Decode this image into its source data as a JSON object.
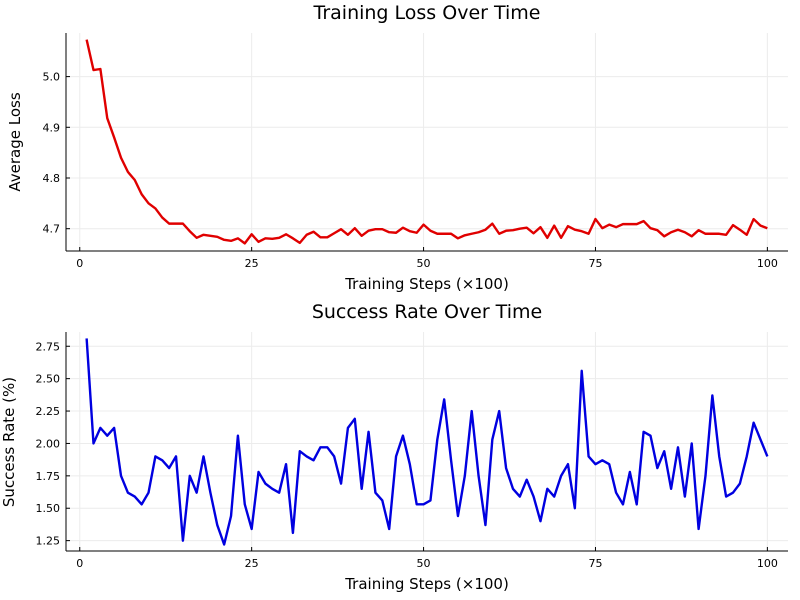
{
  "chart_data": [
    {
      "type": "line",
      "title": "Training Loss Over Time",
      "xlabel": "Training Steps (×100)",
      "ylabel": "Average Loss",
      "xlim": [
        -2,
        103
      ],
      "ylim": [
        4.656,
        5.086
      ],
      "x_ticks": [
        0,
        25,
        50,
        75,
        100
      ],
      "x_tick_labels": [
        "0",
        "25",
        "50",
        "75",
        "100"
      ],
      "y_ticks": [
        4.7,
        4.8,
        4.9,
        5.0
      ],
      "y_tick_labels": [
        "4.7",
        "4.8",
        "4.9",
        "5.0"
      ],
      "grid": true,
      "legend": "none",
      "color": "#e00000",
      "series": [
        {
          "x": [
            1,
            2,
            3,
            4,
            5,
            6,
            7,
            8,
            9,
            10,
            11,
            12,
            13,
            14,
            15,
            16,
            17,
            18,
            19,
            20,
            21,
            22,
            23,
            24,
            25,
            26,
            27,
            28,
            29,
            30,
            31,
            32,
            33,
            34,
            35,
            36,
            37,
            38,
            39,
            40,
            41,
            42,
            43,
            44,
            45,
            46,
            47,
            48,
            49,
            50,
            51,
            52,
            53,
            54,
            55,
            56,
            57,
            58,
            59,
            60,
            61,
            62,
            63,
            64,
            65,
            66,
            67,
            68,
            69,
            70,
            71,
            72,
            73,
            74,
            75,
            76,
            77,
            78,
            79,
            80,
            81,
            82,
            83,
            84,
            85,
            86,
            87,
            88,
            89,
            90,
            91,
            92,
            93,
            94,
            95,
            96,
            97,
            98,
            99,
            100
          ],
          "values": [
            5.073,
            5.013,
            5.015,
            4.918,
            4.88,
            4.84,
            4.812,
            4.796,
            4.768,
            4.75,
            4.74,
            4.722,
            4.71,
            4.71,
            4.71,
            4.695,
            4.682,
            4.688,
            4.686,
            4.684,
            4.678,
            4.676,
            4.681,
            4.671,
            4.689,
            4.674,
            4.681,
            4.68,
            4.682,
            4.689,
            4.681,
            4.672,
            4.688,
            4.694,
            4.683,
            4.683,
            4.691,
            4.699,
            4.688,
            4.701,
            4.686,
            4.696,
            4.699,
            4.699,
            4.693,
            4.692,
            4.702,
            4.695,
            4.692,
            4.708,
            4.696,
            4.69,
            4.69,
            4.69,
            4.681,
            4.687,
            4.69,
            4.693,
            4.698,
            4.71,
            4.69,
            4.696,
            4.697,
            4.7,
            4.702,
            4.691,
            4.703,
            4.682,
            4.706,
            4.682,
            4.705,
            4.698,
            4.695,
            4.69,
            4.719,
            4.701,
            4.708,
            4.703,
            4.709,
            4.709,
            4.709,
            4.715,
            4.701,
            4.697,
            4.685,
            4.693,
            4.698,
            4.693,
            4.685,
            4.697,
            4.69,
            4.69,
            4.69,
            4.688,
            4.707,
            4.698,
            4.688,
            4.719,
            4.706,
            4.701
          ]
        }
      ]
    },
    {
      "type": "line",
      "title": "Success Rate Over Time",
      "xlabel": "Training Steps (×100)",
      "ylabel": "Success Rate (%)",
      "xlim": [
        -2,
        103
      ],
      "ylim": [
        1.17,
        2.86
      ],
      "x_ticks": [
        0,
        25,
        50,
        75,
        100
      ],
      "x_tick_labels": [
        "0",
        "25",
        "50",
        "75",
        "100"
      ],
      "y_ticks": [
        1.25,
        1.5,
        1.75,
        2.0,
        2.25,
        2.5,
        2.75
      ],
      "y_tick_labels": [
        "1.25",
        "1.50",
        "1.75",
        "2.00",
        "2.25",
        "2.50",
        "2.75"
      ],
      "grid": true,
      "legend": "none",
      "color": "#0000e0",
      "series": [
        {
          "x": [
            1,
            2,
            3,
            4,
            5,
            6,
            7,
            8,
            9,
            10,
            11,
            12,
            13,
            14,
            15,
            16,
            17,
            18,
            19,
            20,
            21,
            22,
            23,
            24,
            25,
            26,
            27,
            28,
            29,
            30,
            31,
            32,
            33,
            34,
            35,
            36,
            37,
            38,
            39,
            40,
            41,
            42,
            43,
            44,
            45,
            46,
            47,
            48,
            49,
            50,
            51,
            52,
            53,
            54,
            55,
            56,
            57,
            58,
            59,
            60,
            61,
            62,
            63,
            64,
            65,
            66,
            67,
            68,
            69,
            70,
            71,
            72,
            73,
            74,
            75,
            76,
            77,
            78,
            79,
            80,
            81,
            82,
            83,
            84,
            85,
            86,
            87,
            88,
            89,
            90,
            91,
            92,
            93,
            94,
            95,
            96,
            97,
            98,
            99,
            100
          ],
          "values": [
            2.81,
            2.0,
            2.12,
            2.06,
            2.12,
            1.75,
            1.62,
            1.59,
            1.53,
            1.62,
            1.9,
            1.87,
            1.81,
            1.9,
            1.25,
            1.75,
            1.62,
            1.9,
            1.62,
            1.37,
            1.22,
            1.44,
            2.06,
            1.53,
            1.34,
            1.78,
            1.69,
            1.65,
            1.62,
            1.84,
            1.31,
            1.94,
            1.9,
            1.87,
            1.97,
            1.97,
            1.9,
            1.69,
            2.12,
            2.19,
            1.65,
            2.09,
            1.62,
            1.56,
            1.34,
            1.9,
            2.06,
            1.84,
            1.53,
            1.53,
            1.56,
            2.03,
            2.34,
            1.87,
            1.44,
            1.75,
            2.25,
            1.75,
            1.37,
            2.03,
            2.25,
            1.81,
            1.65,
            1.59,
            1.72,
            1.59,
            1.4,
            1.65,
            1.59,
            1.75,
            1.84,
            1.5,
            2.56,
            1.9,
            1.84,
            1.87,
            1.84,
            1.62,
            1.53,
            1.78,
            1.53,
            2.09,
            2.06,
            1.81,
            1.94,
            1.65,
            1.97,
            1.59,
            2.0,
            1.34,
            1.75,
            2.37,
            1.9,
            1.59,
            1.62,
            1.69,
            1.9,
            2.16,
            2.03,
            1.9
          ]
        }
      ]
    }
  ]
}
